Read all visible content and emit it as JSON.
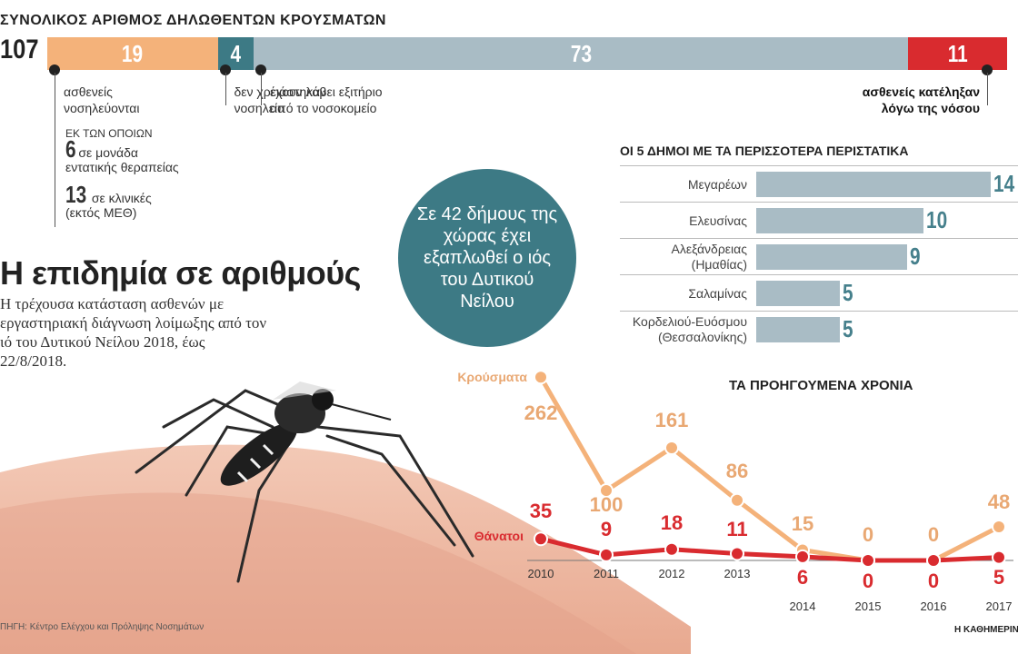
{
  "total": {
    "title": "ΣΥΝΟΛΙΚΟΣ ΑΡΙΘΜΟΣ ΔΗΛΩΘΕΝΤΩΝ ΚΡΟΥΣΜΑΤΩΝ",
    "value": "107",
    "segments": [
      {
        "value": 19,
        "label": "19",
        "color": "#f4b27a",
        "desc": "ασθενείς\nνοσηλεύονται"
      },
      {
        "value": 4,
        "label": "4",
        "color": "#3d7a85",
        "desc": "δεν χρειάστηκαν\nνοσηλεία"
      },
      {
        "value": 73,
        "label": "73",
        "color": "#a9bcc5",
        "desc": "έχουν λάβει εξιτήριο\nαπό το νοσοκομείο"
      },
      {
        "value": 11,
        "label": "11",
        "color": "#d92b2f",
        "desc": "ασθενείς κατέληξαν\nλόγω της νόσου"
      }
    ],
    "sub_note": "ΕΚ ΤΩΝ ΟΠΟΙΩΝ",
    "icu_num": "6",
    "icu_text1": "σε μονάδα",
    "icu_text2": "εντατικής θεραπείας",
    "clinic_num": "13",
    "clinic_text1": "σε κλινικές",
    "clinic_text2": "(εκτός ΜΕΘ)"
  },
  "headline": "Η επιδημία σε αριθμούς",
  "subhead": "Η τρέχουσα κατάσταση ασθενών με εργαστηριακή διάγνωση λοίμωξης από τον ιό του Δυτικού Νείλου 2018, έως 22/8/2018.",
  "circle_text": "Σε 42 δήμους της χώρας έχει εξαπλωθεί ο ιός του Δυτικού Νείλου",
  "municipalities": {
    "title": "ΟΙ 5 ΔΗΜΟΙ ΜΕ ΤΑ ΠΕΡΙΣΣΟΤΕΡΑ ΠΕΡΙΣΤΑΤΙΚΑ",
    "items": [
      {
        "name": "Μεγαρέων",
        "value": 14
      },
      {
        "name": "Ελευσίνας",
        "value": 10
      },
      {
        "name": "Αλεξάνδρειας\n(Ημαθίας)",
        "value": 9
      },
      {
        "name": "Σαλαμίνας",
        "value": 5
      },
      {
        "name": "Κορδελιού-Ευόσμου\n(Θεσσαλονίκης)",
        "value": 5
      }
    ]
  },
  "chart_data": {
    "type": "line",
    "title": "ΤΑ ΠΡΟΗΓΟΥΜΕΝΑ ΧΡΟΝΙΑ",
    "x": [
      "2010",
      "2011",
      "2012",
      "2013",
      "2014",
      "2015",
      "2016",
      "2017"
    ],
    "series": [
      {
        "name": "Κρούσματα",
        "color": "#f4b27a",
        "values": [
          262,
          100,
          161,
          86,
          15,
          0,
          0,
          48
        ]
      },
      {
        "name": "Θάνατοι",
        "color": "#d92b2f",
        "values": [
          35,
          9,
          18,
          11,
          6,
          0,
          0,
          5
        ]
      }
    ]
  },
  "source": "ΠΗΓΗ: Κέντρο Ελέγχου και Πρόληψης Νοσημάτων",
  "brand": "Η ΚΑΘΗΜΕΡΙΝΗ"
}
